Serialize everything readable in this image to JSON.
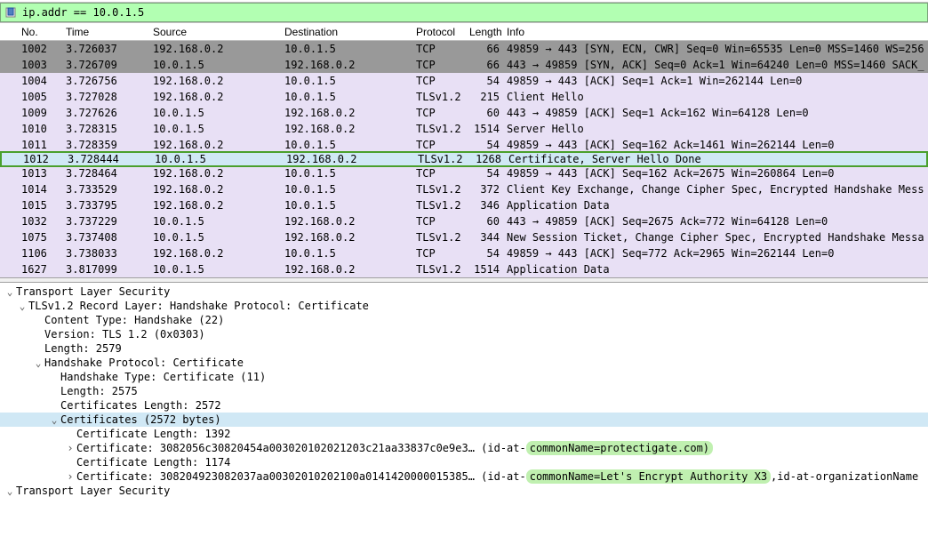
{
  "filter": {
    "value": "ip.addr == 10.0.1.5"
  },
  "columns": {
    "no": "No.",
    "time": "Time",
    "src": "Source",
    "dst": "Destination",
    "proto": "Protocol",
    "len": "Length",
    "info": "Info"
  },
  "rows": [
    {
      "cls": "row-gray",
      "no": "1002",
      "time": "3.726037",
      "src": "192.168.0.2",
      "dst": "10.0.1.5",
      "proto": "TCP",
      "len": "66",
      "info": "49859 → 443 [SYN, ECN, CWR] Seq=0 Win=65535 Len=0 MSS=1460 WS=256"
    },
    {
      "cls": "row-gray",
      "no": "1003",
      "time": "3.726709",
      "src": "10.0.1.5",
      "dst": "192.168.0.2",
      "proto": "TCP",
      "len": "66",
      "info": "443 → 49859 [SYN, ACK] Seq=0 Ack=1 Win=64240 Len=0 MSS=1460 SACK_"
    },
    {
      "cls": "row-lightpurple",
      "no": "1004",
      "time": "3.726756",
      "src": "192.168.0.2",
      "dst": "10.0.1.5",
      "proto": "TCP",
      "len": "54",
      "info": "49859 → 443 [ACK] Seq=1 Ack=1 Win=262144 Len=0"
    },
    {
      "cls": "row-lightpurple",
      "no": "1005",
      "time": "3.727028",
      "src": "192.168.0.2",
      "dst": "10.0.1.5",
      "proto": "TLSv1.2",
      "len": "215",
      "info": "Client Hello"
    },
    {
      "cls": "row-lightpurple",
      "no": "1009",
      "time": "3.727626",
      "src": "10.0.1.5",
      "dst": "192.168.0.2",
      "proto": "TCP",
      "len": "60",
      "info": "443 → 49859 [ACK] Seq=1 Ack=162 Win=64128 Len=0"
    },
    {
      "cls": "row-lightpurple",
      "no": "1010",
      "time": "3.728315",
      "src": "10.0.1.5",
      "dst": "192.168.0.2",
      "proto": "TLSv1.2",
      "len": "1514",
      "info": "Server Hello"
    },
    {
      "cls": "row-lightpurple",
      "no": "1011",
      "time": "3.728359",
      "src": "192.168.0.2",
      "dst": "10.0.1.5",
      "proto": "TCP",
      "len": "54",
      "info": "49859 → 443 [ACK] Seq=162 Ack=1461 Win=262144 Len=0"
    },
    {
      "cls": "row-selected",
      "no": "1012",
      "time": "3.728444",
      "src": "10.0.1.5",
      "dst": "192.168.0.2",
      "proto": "TLSv1.2",
      "len": "1268",
      "info": "Certificate, Server Hello Done"
    },
    {
      "cls": "row-lightpurple",
      "no": "1013",
      "time": "3.728464",
      "src": "192.168.0.2",
      "dst": "10.0.1.5",
      "proto": "TCP",
      "len": "54",
      "info": "49859 → 443 [ACK] Seq=162 Ack=2675 Win=260864 Len=0"
    },
    {
      "cls": "row-lightpurple",
      "no": "1014",
      "time": "3.733529",
      "src": "192.168.0.2",
      "dst": "10.0.1.5",
      "proto": "TLSv1.2",
      "len": "372",
      "info": "Client Key Exchange, Change Cipher Spec, Encrypted Handshake Mess"
    },
    {
      "cls": "row-lightpurple",
      "no": "1015",
      "time": "3.733795",
      "src": "192.168.0.2",
      "dst": "10.0.1.5",
      "proto": "TLSv1.2",
      "len": "346",
      "info": "Application Data"
    },
    {
      "cls": "row-lightpurple",
      "no": "1032",
      "time": "3.737229",
      "src": "10.0.1.5",
      "dst": "192.168.0.2",
      "proto": "TCP",
      "len": "60",
      "info": "443 → 49859 [ACK] Seq=2675 Ack=772 Win=64128 Len=0"
    },
    {
      "cls": "row-lightpurple",
      "no": "1075",
      "time": "3.737408",
      "src": "10.0.1.5",
      "dst": "192.168.0.2",
      "proto": "TLSv1.2",
      "len": "344",
      "info": "New Session Ticket, Change Cipher Spec, Encrypted Handshake Messa"
    },
    {
      "cls": "row-lightpurple",
      "no": "1106",
      "time": "3.738033",
      "src": "192.168.0.2",
      "dst": "10.0.1.5",
      "proto": "TCP",
      "len": "54",
      "info": "49859 → 443 [ACK] Seq=772 Ack=2965 Win=262144 Len=0"
    },
    {
      "cls": "row-lightpurple",
      "no": "1627",
      "time": "3.817099",
      "src": "10.0.1.5",
      "dst": "192.168.0.2",
      "proto": "TLSv1.2",
      "len": "1514",
      "info": "Application Data"
    }
  ],
  "details": {
    "root1": "Transport Layer Security",
    "record": "TLSv1.2 Record Layer: Handshake Protocol: Certificate",
    "content_type": "Content Type: Handshake (22)",
    "version": "Version: TLS 1.2 (0x0303)",
    "length": "Length: 2579",
    "handshake": "Handshake Protocol: Certificate",
    "handshake_type": "Handshake Type: Certificate (11)",
    "handshake_len": "Length: 2575",
    "certs_len": "Certificates Length: 2572",
    "certs_header": "Certificates (2572 bytes)",
    "cert_len1": "Certificate Length: 1392",
    "cert1_prefix": "Certificate: 3082056c30820454a003020102021203c21aa33837c0e9e3… (id-at-",
    "cert1_hl": "commonName=protectigate.com)",
    "cert_len2": "Certificate Length: 1174",
    "cert2_prefix": "Certificate: 308204923082037aa00302010202100a0141420000015385… (id-at-",
    "cert2_hl": "commonName=Let's Encrypt Authority X3",
    "cert2_suffix": ",id-at-organizationName",
    "root2": "Transport Layer Security"
  },
  "colors": {
    "filter_bg": "#b2ffb2",
    "row_gray": "#999999",
    "row_lightpurple": "#e8e0f5",
    "row_selected_bg": "#d0e8f5",
    "row_selected_border": "#4aa02c",
    "highlight_green": "#c0f0b0"
  }
}
